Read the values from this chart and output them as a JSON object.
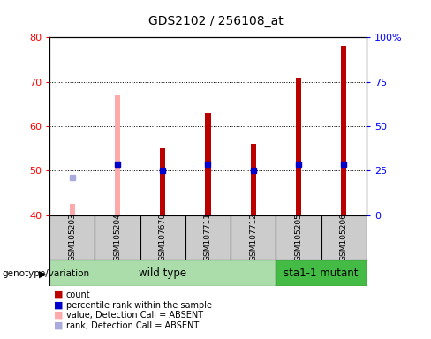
{
  "title": "GDS2102 / 256108_at",
  "sample_labels": [
    "GSM105203",
    "GSM105204",
    "GSM107670",
    "GSM107711",
    "GSM107712",
    "GSM105205",
    "GSM105206"
  ],
  "count_values": [
    null,
    null,
    55.0,
    63.0,
    56.0,
    71.0,
    78.0
  ],
  "count_absent_values": [
    42.5,
    67.0,
    null,
    null,
    null,
    null,
    null
  ],
  "percentile_values": [
    null,
    51.5,
    50.0,
    51.5,
    50.0,
    51.5,
    51.5
  ],
  "rank_absent_values": [
    48.5,
    null,
    null,
    null,
    null,
    null,
    null
  ],
  "y_min": 40,
  "y_max": 80,
  "y_ticks": [
    40,
    50,
    60,
    70,
    80
  ],
  "y2_ticks": [
    0,
    25,
    50,
    75,
    100
  ],
  "y2_tick_labels": [
    "0",
    "25",
    "50",
    "75",
    "100%"
  ],
  "bar_width": 0.12,
  "count_color": "#bb0000",
  "count_absent_color": "#ffaaaa",
  "percentile_color": "#0000cc",
  "rank_absent_color": "#aaaadd",
  "bg_color": "#cccccc",
  "plot_bg": "#ffffff",
  "wt_color": "#aaddaa",
  "mut_color": "#44bb44",
  "legend_items": [
    {
      "label": "count",
      "color": "#bb0000"
    },
    {
      "label": "percentile rank within the sample",
      "color": "#0000cc"
    },
    {
      "label": "value, Detection Call = ABSENT",
      "color": "#ffaaaa"
    },
    {
      "label": "rank, Detection Call = ABSENT",
      "color": "#aaaadd"
    }
  ]
}
